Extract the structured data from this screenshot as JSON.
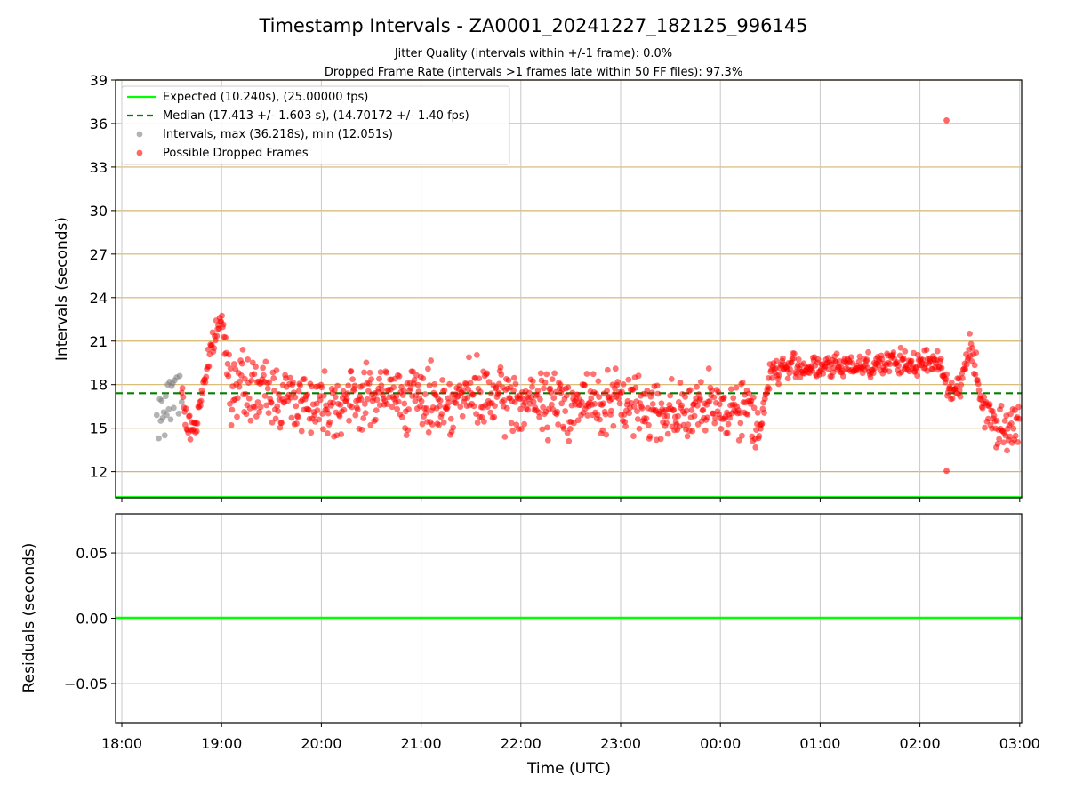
{
  "chart_data": [
    {
      "type": "scatter",
      "title": "Timestamp Intervals - ZA0001_20241227_182125_996145",
      "subtitle_1": "Jitter Quality (intervals within +/-1 frame): 0.0%",
      "subtitle_2": "Dropped Frame Rate (intervals >1 frames late within 50 FF files): 97.3%",
      "xlabel": "",
      "ylabel": "Intervals (seconds)",
      "xlim": [
        "17:56",
        "27:01"
      ],
      "ylim": [
        10.2,
        39
      ],
      "yticks": [
        12,
        15,
        18,
        21,
        24,
        27,
        30,
        33,
        36,
        39
      ],
      "grid": true,
      "grid_color_horizontal": "#d4b56a",
      "legend_position": "top-left",
      "legend": [
        "Expected (10.240s), (25.00000 fps)",
        "Median (17.413 +/- 1.603 s), (14.70172 +/- 1.40 fps)",
        "Intervals, max (36.218s), min (12.051s)",
        "Possible Dropped Frames"
      ],
      "series": [
        {
          "name": "Expected (10.240s), (25.00000 fps)",
          "kind": "hline",
          "y": 10.24,
          "color": "#00ff00"
        },
        {
          "name": "Median (17.413 +/- 1.603 s), (14.70172 +/- 1.40 fps)",
          "kind": "hline_dashed",
          "y": 17.413,
          "color": "#008000"
        },
        {
          "name": "Intervals, max (36.218s), min (12.051s)",
          "kind": "scatter",
          "color": "#808080",
          "x_time_hours": [
            18.35,
            18.37,
            18.38,
            18.39,
            18.4,
            18.41,
            18.42,
            18.43,
            18.44,
            18.45,
            18.46,
            18.47,
            18.48,
            18.49,
            18.5,
            18.51,
            18.52,
            18.53,
            18.55,
            18.57,
            18.58,
            18.6
          ],
          "y": [
            15.9,
            14.3,
            17.0,
            15.5,
            16.9,
            15.7,
            16.1,
            14.5,
            17.2,
            15.9,
            18.0,
            16.3,
            18.2,
            15.6,
            17.9,
            18.1,
            16.4,
            18.3,
            18.5,
            16.0,
            18.6,
            16.8
          ]
        },
        {
          "name": "Possible Dropped Frames",
          "kind": "scatter",
          "color": "#ff0000",
          "trend_hours": [
            18.6,
            18.65,
            18.7,
            18.75,
            18.8,
            18.85,
            18.9,
            18.95,
            19.0,
            19.1,
            19.3,
            19.5,
            19.75,
            20.0,
            20.25,
            20.5,
            20.75,
            21.0,
            21.25,
            21.5,
            21.75,
            22.0,
            22.25,
            22.5,
            22.75,
            23.0,
            23.25,
            23.5,
            23.75,
            24.0,
            24.25,
            24.4,
            24.5,
            24.75,
            25.0,
            25.25,
            25.5,
            25.75,
            26.0,
            26.2,
            26.3,
            26.4,
            26.5,
            26.6,
            26.75,
            27.0
          ],
          "trend_values": [
            17.5,
            15.2,
            15.0,
            15.3,
            17.5,
            19.0,
            20.5,
            21.7,
            22.5,
            18.0,
            17.6,
            17.4,
            17.0,
            16.8,
            16.8,
            17.3,
            17.3,
            17.0,
            16.8,
            17.2,
            17.0,
            16.8,
            16.8,
            16.7,
            16.7,
            16.8,
            16.5,
            16.2,
            16.2,
            16.4,
            16.6,
            15.0,
            18.9,
            19.3,
            19.1,
            19.3,
            19.4,
            19.5,
            19.4,
            19.6,
            17.6,
            17.8,
            21.0,
            17.0,
            15.3,
            15.0
          ],
          "outliers": [
            {
              "x": "02:16",
              "y": 36.218
            },
            {
              "x": "02:16",
              "y": 12.051
            }
          ]
        }
      ]
    },
    {
      "type": "line",
      "title": "",
      "xlabel": "Time (UTC)",
      "ylabel": "Residuals (seconds)",
      "ylim": [
        -0.08,
        0.08
      ],
      "yticks": [
        0.05,
        0.0,
        -0.05
      ],
      "ytick_labels": [
        "0.05",
        "0.00",
        "−0.05"
      ],
      "xticks": [
        "18:00",
        "19:00",
        "20:00",
        "21:00",
        "22:00",
        "23:00",
        "00:00",
        "01:00",
        "02:00",
        "03:00"
      ],
      "grid": true,
      "series": [
        {
          "kind": "hline",
          "y": 0.0,
          "color": "#00ff00"
        }
      ]
    }
  ]
}
